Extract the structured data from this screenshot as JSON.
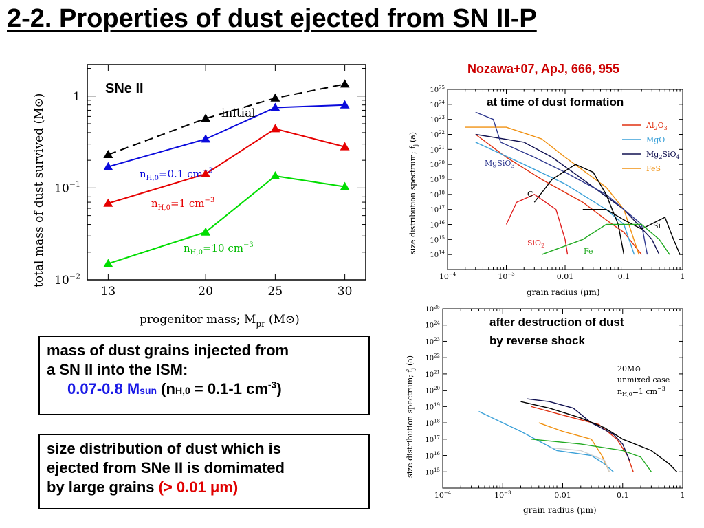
{
  "slide": {
    "title": "2-2. Properties of dust ejected from SN II-P",
    "citation": "Nozawa+07, ApJ, 666, 955"
  },
  "box1": {
    "line1": "mass of dust grains injected from",
    "line2": "a SN II into the ISM:",
    "mass_value": "0.07-0.8 M",
    "mass_sub": "sun",
    "paren_open": " (n",
    "n_sub": "H,0",
    "density": " = 0.1-1 cm",
    "density_sup": "-3",
    "paren_close": ")"
  },
  "box2": {
    "line1": "size distribution of dust which is",
    "line2": "ejected from SNe II is domimated",
    "line3": "by large grains ",
    "highlight": "(> 0.01 μm)"
  },
  "chart_data": [
    {
      "type": "line",
      "panel_label": "SNe II",
      "xlabel": "progenitor mass; M",
      "xlabel_sub": "pr",
      "xlabel_unit": "(M⊙)",
      "ylabel": "total mass of dust survived (M⊙)",
      "x": [
        13,
        20,
        25,
        30
      ],
      "x_ticks": [
        "13",
        "20",
        "25",
        "30"
      ],
      "y_scale": "log",
      "y_ticks": [
        {
          "value": 0.01,
          "base": "10",
          "exp": "−2"
        },
        {
          "value": 0.1,
          "base": "10",
          "exp": "−1"
        },
        {
          "value": 1,
          "base": "1",
          "exp": ""
        }
      ],
      "ylim": [
        0.01,
        2.2
      ],
      "xlim": [
        11.5,
        31.5
      ],
      "series": [
        {
          "name": "initial",
          "label": "initial",
          "values": [
            0.23,
            0.57,
            0.95,
            1.35
          ],
          "color": "#000000",
          "dashed": true
        },
        {
          "name": "nH,0=0.1",
          "label_main": "n",
          "label_sub": "H,0",
          "label_rest": "=0.1  cm",
          "label_sup": "−3",
          "values": [
            0.17,
            0.34,
            0.75,
            0.8
          ],
          "color": "#0a0adc",
          "dashed": false
        },
        {
          "name": "nH,0=1",
          "label_main": "n",
          "label_sub": "H,0",
          "label_rest": "=1  cm",
          "label_sup": "−3",
          "values": [
            0.068,
            0.142,
            0.44,
            0.28
          ],
          "color": "#e60000",
          "dashed": false
        },
        {
          "name": "nH,0=10",
          "label_main": "n",
          "label_sub": "H,0",
          "label_rest": "=10  cm",
          "label_sup": "−3",
          "values": [
            0.015,
            0.033,
            0.135,
            0.103
          ],
          "color": "#00dd00",
          "dashed": false
        }
      ]
    },
    {
      "type": "line",
      "panel_label": "at time of dust formation",
      "xlabel": "grain radius (μm)",
      "ylabel": "size distribution spectrum; f",
      "ylabel_sub": "j",
      "ylabel_tail": "(a)",
      "x_scale": "log",
      "y_scale": "log",
      "xlim": [
        0.0001,
        1
      ],
      "ylim": [
        10000000000000.0,
        1e+25
      ],
      "x_ticks": [
        {
          "value": 0.0001,
          "base": "10",
          "exp": "−4"
        },
        {
          "value": 0.001,
          "base": "10",
          "exp": "−3"
        },
        {
          "value": 0.01,
          "base": "0.01",
          "exp": ""
        },
        {
          "value": 0.1,
          "base": "0.1",
          "exp": ""
        },
        {
          "value": 1,
          "base": "1",
          "exp": ""
        }
      ],
      "y_ticks": [
        "14",
        "15",
        "16",
        "17",
        "18",
        "19",
        "20",
        "21",
        "22",
        "23",
        "24",
        "25"
      ],
      "legend": [
        {
          "name": "Al2O3",
          "main": "Al",
          "s1": "2",
          "mid": "O",
          "s2": "3",
          "color": "#e03010"
        },
        {
          "name": "MgO",
          "main": "MgO",
          "s1": "",
          "mid": "",
          "s2": "",
          "color": "#3aa0d8"
        },
        {
          "name": "Mg2SiO4",
          "main": "Mg",
          "s1": "2",
          "mid": "SiO",
          "s2": "4",
          "color": "#101050"
        },
        {
          "name": "FeS",
          "main": "FeS",
          "s1": "",
          "mid": "",
          "s2": "",
          "color": "#f09010"
        }
      ],
      "annotations": [
        {
          "text": "MgSiO",
          "sub": "3",
          "color": "#303a90"
        },
        {
          "text": "C",
          "sub": "",
          "color": "#000000"
        },
        {
          "text": "Si",
          "sub": "",
          "color": "#000000"
        },
        {
          "text": "SiO",
          "sub": "2",
          "color": "#e02020"
        },
        {
          "text": "Fe",
          "sub": "",
          "color": "#22aa22"
        }
      ],
      "series": [
        {
          "name": "Al2O3",
          "color": "#e03010",
          "points": [
            [
              0.0003,
              1e+22
            ],
            [
              0.001,
              3e+20
            ],
            [
              0.004,
              1e+19
            ],
            [
              0.02,
              3e+17
            ],
            [
              0.05,
              2e+16
            ],
            [
              0.1,
              3000000000000000.0
            ],
            [
              0.2,
              100000000000000.0
            ]
          ]
        },
        {
          "name": "MgO",
          "color": "#3aa0d8",
          "points": [
            [
              0.0003,
              3e+21
            ],
            [
              0.002,
              1e+20
            ],
            [
              0.01,
              5e+18
            ],
            [
              0.05,
              1e+17
            ],
            [
              0.1,
              1e+16
            ],
            [
              0.15,
              100000000000000.0
            ]
          ]
        },
        {
          "name": "Mg2SiO4",
          "color": "#101050",
          "points": [
            [
              0.0003,
              1e+22
            ],
            [
              0.002,
              3e+21
            ],
            [
              0.006,
              3e+20
            ],
            [
              0.02,
              1e+19
            ],
            [
              0.1,
              1e+17
            ],
            [
              0.3,
              1000000000000000.0
            ],
            [
              0.4,
              100000000000000.0
            ]
          ]
        },
        {
          "name": "FeS",
          "color": "#f09010",
          "points": [
            [
              0.0002,
              3e+22
            ],
            [
              0.001,
              3e+22
            ],
            [
              0.004,
              5e+21
            ],
            [
              0.01,
              3e+20
            ],
            [
              0.05,
              3e+18
            ],
            [
              0.1,
              1e+17
            ],
            [
              0.18,
              100000000000000.0
            ]
          ]
        },
        {
          "name": "MgSiO3",
          "color": "#303a90",
          "points": [
            [
              0.0003,
              3e+23
            ],
            [
              0.0006,
              1e+23
            ],
            [
              0.0008,
              3e+21
            ],
            [
              0.003,
              3e+20
            ],
            [
              0.01,
              3e+19
            ],
            [
              0.05,
              1e+18
            ],
            [
              0.2,
              1e+16
            ],
            [
              0.25,
              100000000000000.0
            ]
          ]
        },
        {
          "name": "C",
          "color": "#000000",
          "points": [
            [
              0.003,
              3e+17
            ],
            [
              0.006,
              1e+19
            ],
            [
              0.015,
              1e+20
            ],
            [
              0.03,
              3e+19
            ],
            [
              0.05,
              1e+18
            ],
            [
              0.08,
              1e+16
            ],
            [
              0.1,
              100000000000000.0
            ]
          ]
        },
        {
          "name": "Si",
          "color": "#000000",
          "points": [
            [
              0.02,
              1e+17
            ],
            [
              0.05,
              1e+17
            ],
            [
              0.1,
              2e+16
            ],
            [
              0.2,
              5000000000000000.0
            ],
            [
              0.5,
              3e+16
            ],
            [
              0.7,
              1000000000000000.0
            ],
            [
              0.9,
              100000000000000.0
            ]
          ]
        },
        {
          "name": "SiO2",
          "color": "#e02020",
          "points": [
            [
              0.001,
              1e+16
            ],
            [
              0.0015,
              3e+17
            ],
            [
              0.003,
              1e+18
            ],
            [
              0.007,
              1e+17
            ],
            [
              0.01,
              1000000000000000.0
            ],
            [
              0.011,
              100000000000000.0
            ]
          ]
        },
        {
          "name": "Fe",
          "color": "#22aa22",
          "points": [
            [
              0.004,
              100000000000000.0
            ],
            [
              0.02,
              1000000000000000.0
            ],
            [
              0.05,
              1e+16
            ],
            [
              0.2,
              1e+16
            ],
            [
              0.4,
              1000000000000000.0
            ],
            [
              0.6,
              100000000000000.0
            ]
          ]
        }
      ]
    },
    {
      "type": "line",
      "panel_label_1": "after destruction of dust",
      "panel_label_2": "by reverse shock",
      "inset_1": "20M⊙",
      "inset_2": "unmixed case",
      "inset_3_main": "n",
      "inset_3_sub": "H,0",
      "inset_3_rest": "=1 cm",
      "inset_3_sup": "−3",
      "xlabel": "grain radius (μm)",
      "ylabel": "size distribution spectrum; f",
      "ylabel_sub": "j",
      "ylabel_tail": "(a)",
      "x_scale": "log",
      "y_scale": "log",
      "xlim": [
        0.0001,
        1
      ],
      "ylim": [
        100000000000000.0,
        1e+25
      ],
      "x_ticks": [
        {
          "value": 0.0001,
          "base": "10",
          "exp": "−4"
        },
        {
          "value": 0.001,
          "base": "10",
          "exp": "−3"
        },
        {
          "value": 0.01,
          "base": "0.01",
          "exp": ""
        },
        {
          "value": 0.1,
          "base": "0.1",
          "exp": ""
        },
        {
          "value": 1,
          "base": "1",
          "exp": ""
        }
      ],
      "y_ticks": [
        "15",
        "16",
        "17",
        "18",
        "19",
        "20",
        "21",
        "22",
        "23",
        "24",
        "25"
      ],
      "series": [
        {
          "name": "Al2O3",
          "color": "#e03010",
          "points": [
            [
              0.003,
              1e+19
            ],
            [
              0.01,
              3e+18
            ],
            [
              0.04,
              8e+17
            ],
            [
              0.08,
              1e+17
            ],
            [
              0.12,
              1e+16
            ],
            [
              0.15,
              1000000000000000.0
            ]
          ]
        },
        {
          "name": "MgO",
          "color": "#3aa0d8",
          "points": [
            [
              0.0004,
              5e+18
            ],
            [
              0.002,
              3e+17
            ],
            [
              0.008,
              2e+16
            ],
            [
              0.03,
              1e+16
            ],
            [
              0.05,
              3000000000000000.0
            ],
            [
              0.07,
              1000000000000000.0
            ]
          ]
        },
        {
          "name": "Mg2SiO4",
          "color": "#101050",
          "points": [
            [
              0.0025,
              3e+19
            ],
            [
              0.006,
              2e+19
            ],
            [
              0.015,
              8e+18
            ],
            [
              0.03,
              1e+18
            ],
            [
              0.07,
              2e+17
            ],
            [
              0.1,
              5e+16
            ],
            [
              0.13,
              5000000000000000.0
            ]
          ]
        },
        {
          "name": "FeS",
          "color": "#f09010",
          "points": [
            [
              0.004,
              1e+18
            ],
            [
              0.01,
              3e+17
            ],
            [
              0.03,
              1e+17
            ],
            [
              0.045,
              1e+16
            ],
            [
              0.06,
              1000000000000000.0
            ]
          ]
        },
        {
          "name": "Si",
          "color": "#000000",
          "points": [
            [
              0.002,
              2e+19
            ],
            [
              0.006,
              8e+18
            ],
            [
              0.02,
              2e+18
            ],
            [
              0.05,
              5e+17
            ],
            [
              0.1,
              1e+17
            ],
            [
              0.3,
              2e+16
            ],
            [
              0.6,
              3000000000000000.0
            ],
            [
              0.8,
              1000000000000000.0
            ]
          ]
        },
        {
          "name": "Fe",
          "color": "#22aa22",
          "points": [
            [
              0.003,
              1e+17
            ],
            [
              0.02,
              5e+16
            ],
            [
              0.1,
              2e+16
            ],
            [
              0.2,
              8000000000000000.0
            ],
            [
              0.3,
              1000000000000000.0
            ]
          ]
        },
        {
          "name": "SiO2",
          "color": "#d0d0d0",
          "points": [
            [
              0.006,
              3e+16
            ],
            [
              0.02,
              2e+16
            ],
            [
              0.05,
              5000000000000000.0
            ],
            [
              0.06,
              1000000000000000.0
            ]
          ]
        }
      ]
    }
  ]
}
